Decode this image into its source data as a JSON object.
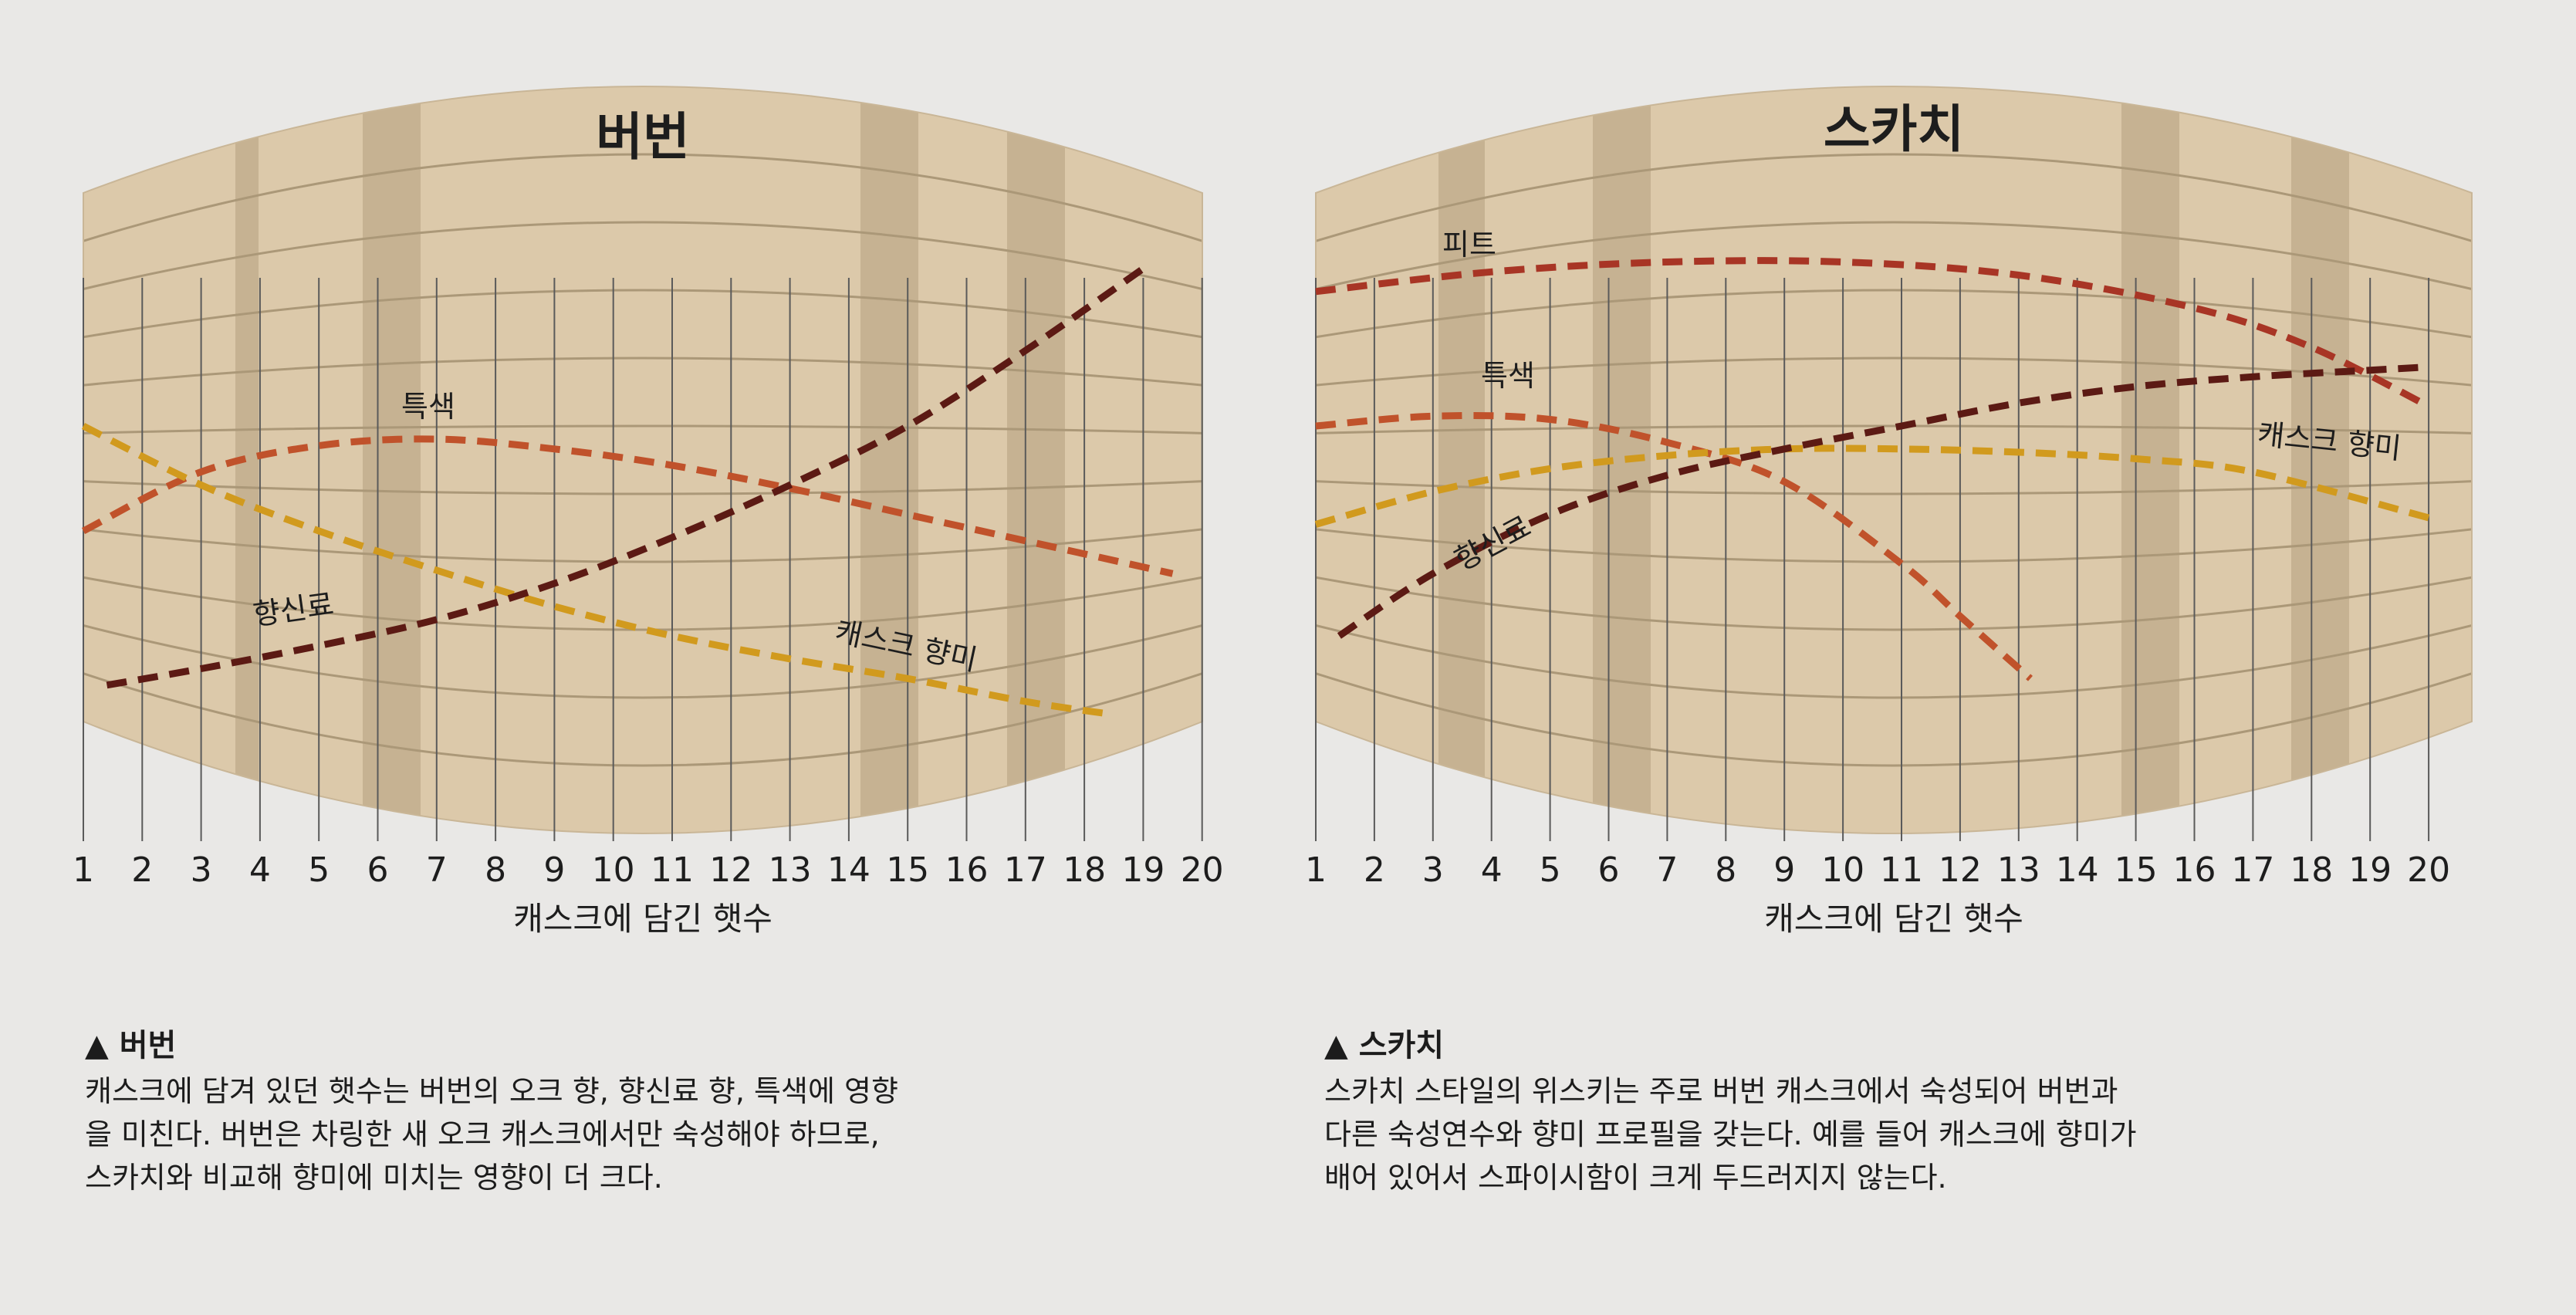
{
  "chart_data": [
    {
      "type": "line",
      "title": "버번",
      "xlabel": "캐스크에 담긴 햇수",
      "categories": [
        "1",
        "2",
        "3",
        "4",
        "5",
        "6",
        "7",
        "8",
        "9",
        "10",
        "11",
        "12",
        "13",
        "14",
        "15",
        "16",
        "17",
        "18",
        "19",
        "20"
      ],
      "series_colors": [
        "#c0522b",
        "#d19a1e",
        "#5c1a14"
      ],
      "series": [
        {
          "name": "특색",
          "x": [
            1,
            3,
            5,
            7,
            9,
            11,
            13,
            15,
            17,
            19.5
          ],
          "y": [
            3.2,
            4.1,
            4.5,
            4.6,
            4.45,
            4.2,
            3.85,
            3.45,
            3.05,
            2.55
          ]
        },
        {
          "name": "캐스크 향미",
          "x": [
            1,
            3,
            5,
            7,
            9,
            11,
            13,
            15,
            17,
            18.5
          ],
          "y": [
            4.8,
            3.9,
            3.2,
            2.6,
            2.05,
            1.6,
            1.25,
            0.95,
            0.6,
            0.4
          ]
        },
        {
          "name": "향신료",
          "x": [
            1.4,
            3,
            5,
            7,
            9,
            11,
            13,
            15,
            17,
            19
          ],
          "y": [
            0.85,
            1.1,
            1.45,
            1.85,
            2.4,
            3.1,
            3.9,
            4.8,
            5.95,
            7.2
          ]
        }
      ],
      "label_positions": [
        "top",
        "bottom-right",
        "bottom-left"
      ],
      "grid": true,
      "ylim": [
        0,
        8
      ]
    },
    {
      "type": "line",
      "title": "스카치",
      "xlabel": "캐스크에 담긴 햇수",
      "categories": [
        "1",
        "2",
        "3",
        "4",
        "5",
        "6",
        "7",
        "8",
        "9",
        "10",
        "11",
        "12",
        "13",
        "14",
        "15",
        "16",
        "17",
        "18",
        "19",
        "20"
      ],
      "series_colors": [
        "#a83525",
        "#c0522b",
        "#d19a1e",
        "#5c1a14"
      ],
      "series": [
        {
          "name": "피트",
          "x": [
            1,
            4,
            7,
            10,
            13,
            16,
            18,
            20
          ],
          "y": [
            6.85,
            7.15,
            7.3,
            7.3,
            7.1,
            6.6,
            6.0,
            5.1
          ]
        },
        {
          "name": "특색",
          "x": [
            1,
            3,
            5,
            7,
            9,
            11,
            12,
            13.2
          ],
          "y": [
            4.8,
            4.95,
            4.9,
            4.55,
            3.95,
            2.7,
            1.9,
            0.95
          ]
        },
        {
          "name": "캐스크 향미",
          "x": [
            1,
            3,
            5,
            7,
            9,
            11,
            13,
            15,
            17,
            20
          ],
          "y": [
            3.3,
            3.8,
            4.15,
            4.35,
            4.45,
            4.45,
            4.4,
            4.3,
            4.1,
            3.4
          ]
        },
        {
          "name": "향신료",
          "x": [
            1.4,
            3,
            5,
            7,
            9,
            11,
            13,
            15,
            17,
            19,
            20
          ],
          "y": [
            1.6,
            2.55,
            3.45,
            4.05,
            4.45,
            4.8,
            5.15,
            5.4,
            5.55,
            5.65,
            5.7
          ]
        }
      ],
      "label_positions": [
        "top-left",
        "top-left",
        "right",
        "left"
      ],
      "grid": true,
      "ylim": [
        0,
        8
      ]
    }
  ],
  "captions": [
    {
      "title": "▲ 버번",
      "lines": [
        "캐스크에 담겨 있던 햇수는 버번의 오크 향, 향신료 향, 특색에 영향",
        "을 미친다. 버번은 차링한 새 오크 캐스크에서만 숙성해야 하므로,",
        "스카치와 비교해 향미에 미치는 영향이 더 크다."
      ]
    },
    {
      "title": "▲ 스카치",
      "lines": [
        "스카치 스타일의 위스키는 주로 버번 캐스크에서 숙성되어 버번과",
        "다른 숙성연수와 향미 프로필을 갖는다. 예를 들어 캐스크에 향미가",
        "배어 있어서 스파이시함이 크게 두드러지지 않는다."
      ]
    }
  ]
}
